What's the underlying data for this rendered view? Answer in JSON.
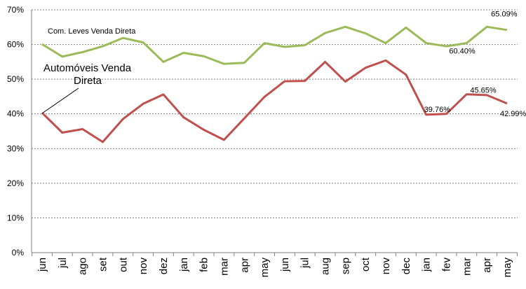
{
  "chart_data": {
    "type": "line",
    "categories": [
      "jun",
      "jul",
      "ago",
      "set",
      "out",
      "nov",
      "dez",
      "jan",
      "feb",
      "mar",
      "apr",
      "may",
      "jun",
      "jul",
      "aug",
      "sep",
      "oct",
      "nov",
      "dec",
      "jan",
      "fev",
      "mar",
      "apr",
      "may"
    ],
    "ylim": [
      0,
      70
    ],
    "yticks": [
      "0%",
      "10%",
      "20%",
      "30%",
      "40%",
      "50%",
      "60%",
      "70%"
    ],
    "grid": true,
    "series": [
      {
        "name": "Com. Leves Venda Direta",
        "color": "#9bbb59",
        "values": [
          60.1,
          56.5,
          57.8,
          59.5,
          61.9,
          60.6,
          55.0,
          57.6,
          56.6,
          54.4,
          54.7,
          60.4,
          59.3,
          59.8,
          63.3,
          65.1,
          63.2,
          60.4,
          64.9,
          60.4,
          59.5,
          60.4,
          65.09,
          64.2
        ]
      },
      {
        "name": "Automóveis Venda Direta",
        "color": "#c0504d",
        "values": [
          40.3,
          34.6,
          35.6,
          31.9,
          38.5,
          42.9,
          45.6,
          39.0,
          35.4,
          32.5,
          38.7,
          44.9,
          49.4,
          49.5,
          55.0,
          49.3,
          53.3,
          55.4,
          51.3,
          39.76,
          40.0,
          45.65,
          45.4,
          42.99
        ]
      }
    ],
    "series_labels": {
      "green": "Com. Leves Venda Direta",
      "red_line1": "Automóveis Venda",
      "red_line2": "Direta"
    },
    "annotations": [
      {
        "text": "65.09%",
        "series": 0,
        "index": 22
      },
      {
        "text": "60.40%",
        "series": 0,
        "index": 21
      },
      {
        "text": "39.76%",
        "series": 1,
        "index": 19
      },
      {
        "text": "45.65%",
        "series": 1,
        "index": 21
      },
      {
        "text": "42.99%",
        "series": 1,
        "index": 23
      }
    ]
  }
}
